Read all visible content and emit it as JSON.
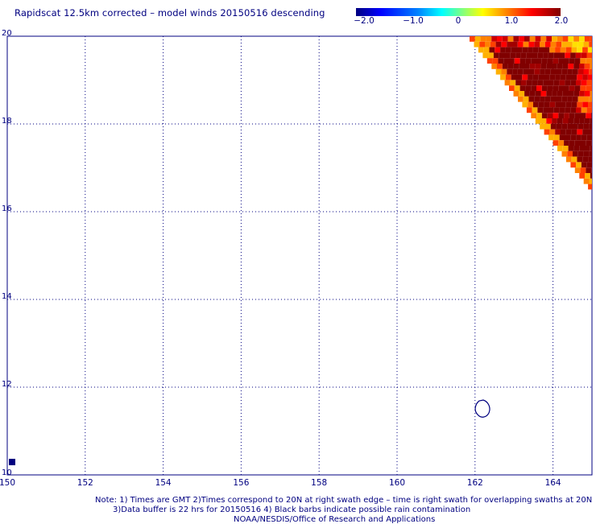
{
  "title": "Rapidscat 12.5km corrected – model winds 20150516 descending",
  "colorbar": {
    "labels": [
      "−2.0",
      "−1.0",
      "0",
      "1.0",
      "2.0"
    ],
    "min": -2.0,
    "max": 2.0,
    "colors": [
      "#000080",
      "#0000ff",
      "#0080ff",
      "#00ffff",
      "#80ff80",
      "#ffff00",
      "#ff8000",
      "#ff0000",
      "#800000"
    ]
  },
  "map": {
    "lon_labels": [
      "150",
      "152",
      "154",
      "156",
      "158",
      "160",
      "162",
      "164"
    ],
    "lat_labels": [
      "10",
      "12",
      "14",
      "16",
      "18",
      "20"
    ],
    "lon_range": [
      150,
      165
    ],
    "lat_range": [
      10,
      20
    ],
    "grid": "dotted",
    "land_outline_island": {
      "lon": 162.3,
      "lat": 11.55
    }
  },
  "notes": {
    "line1": "Note: 1) Times are GMT 2)Times correspond to 20N at right swath edge – time is right swath for overlapping swaths at 20N",
    "line2": "3)Data buffer is 22 hrs for 20150516 4) Black barbs indicate possible rain contamination",
    "line3": "NOAA/NESDIS/Office of Research and Applications"
  }
}
